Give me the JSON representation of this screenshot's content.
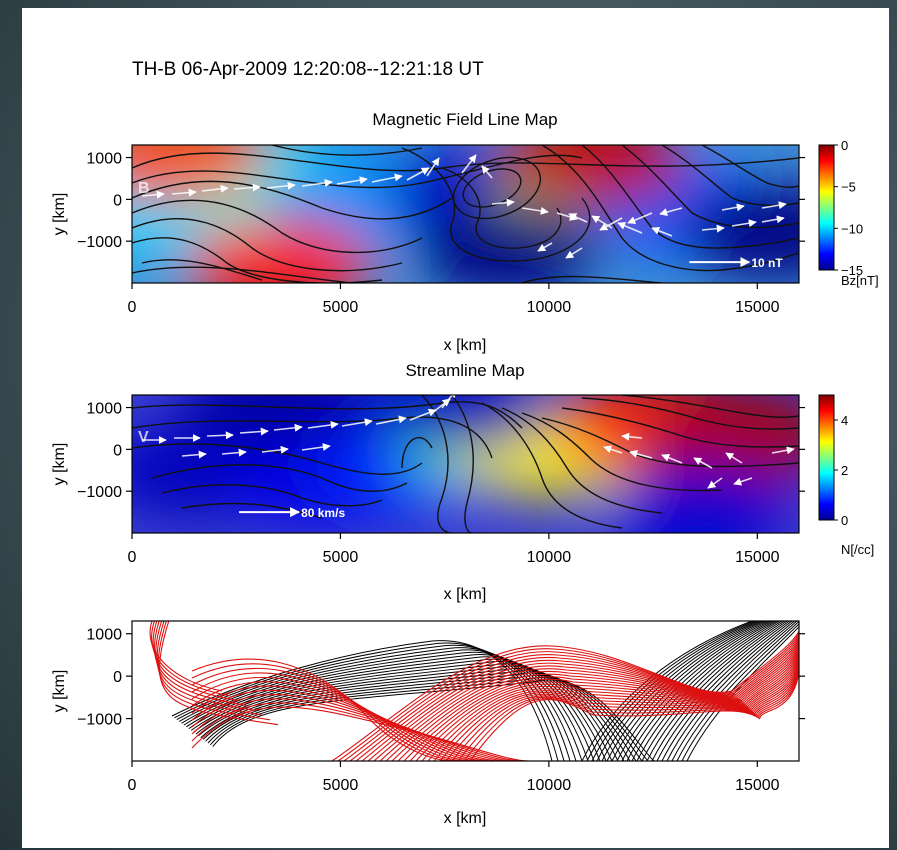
{
  "figure": {
    "supertitle": "TH-B  06-Apr-2009 12:20:08--12:21:18 UT"
  },
  "chart_data": [
    {
      "type": "heatmap",
      "title": "Magnetic Field Line Map",
      "panel_letter": "B",
      "xlabel": "x [km]",
      "ylabel": "y [km]",
      "xlim": [
        0,
        16000
      ],
      "ylim": [
        -2000,
        1300
      ],
      "xticks": [
        0,
        5000,
        10000,
        15000
      ],
      "yticks": [
        1000,
        0,
        -1000
      ],
      "yticklabels": [
        "1000",
        "0",
        "−1000"
      ],
      "colorbar": {
        "label": "Bz[nT]",
        "range": [
          -15,
          0
        ],
        "ticks": [
          0,
          -5,
          -10,
          -15
        ],
        "ticklabels": [
          "0",
          "−5",
          "−10",
          "−15"
        ],
        "colormap": "jet"
      },
      "vector_scale": {
        "label": "10 nT",
        "x": 15000,
        "y": -1500
      },
      "field": [
        {
          "x": 500,
          "y": -300,
          "value": -10
        },
        {
          "x": 3000,
          "y": 400,
          "value": -9
        },
        {
          "x": 5500,
          "y": 0,
          "value": -11
        },
        {
          "x": 8300,
          "y": 200,
          "value": -14
        },
        {
          "x": 11000,
          "y": 0,
          "value": -7
        },
        {
          "x": 13000,
          "y": -200,
          "value": -12
        },
        {
          "x": 15500,
          "y": -800,
          "value": -15
        },
        {
          "x": 9000,
          "y": -1200,
          "value": -15
        },
        {
          "x": 1000,
          "y": 1100,
          "value": -3
        },
        {
          "x": 3500,
          "y": -1600,
          "value": -2
        },
        {
          "x": 11000,
          "y": 1000,
          "value": -1
        }
      ]
    },
    {
      "type": "heatmap",
      "title": "Streamline Map",
      "panel_letter": "V",
      "xlabel": "x [km]",
      "ylabel": "y [km]",
      "xlim": [
        0,
        16000
      ],
      "ylim": [
        -2000,
        1300
      ],
      "xticks": [
        0,
        5000,
        10000,
        15000
      ],
      "yticks": [
        1000,
        0,
        -1000
      ],
      "yticklabels": [
        "1000",
        "0",
        "−1000"
      ],
      "colorbar": {
        "label": "N[/cc]",
        "range": [
          0,
          5
        ],
        "ticks": [
          4,
          2,
          0
        ],
        "ticklabels": [
          "4",
          "2",
          "0"
        ],
        "colormap": "jet"
      },
      "vector_scale": {
        "label": "80 km/s",
        "x": 4200,
        "y": -1500
      },
      "field": [
        {
          "x": 1500,
          "y": -500,
          "value": 0.3
        },
        {
          "x": 4500,
          "y": -700,
          "value": 0.5
        },
        {
          "x": 6500,
          "y": -300,
          "value": 0.8
        },
        {
          "x": 8500,
          "y": 300,
          "value": 2.2
        },
        {
          "x": 10000,
          "y": 0,
          "value": 3.2
        },
        {
          "x": 12500,
          "y": 600,
          "value": 4.2
        },
        {
          "x": 14500,
          "y": 300,
          "value": 4.8
        },
        {
          "x": 13500,
          "y": -1500,
          "value": 0.4
        },
        {
          "x": 3500,
          "y": 1100,
          "value": 0.2
        },
        {
          "x": 7800,
          "y": 1100,
          "value": 0.3
        }
      ]
    },
    {
      "type": "line",
      "title": "",
      "xlabel": "x [km]",
      "ylabel": "y [km]",
      "xlim": [
        0,
        16000
      ],
      "ylim": [
        -2000,
        1300
      ],
      "xticks": [
        0,
        5000,
        10000,
        15000
      ],
      "yticks": [
        1000,
        0,
        -1000
      ],
      "yticklabels": [
        "1000",
        "0",
        "−1000"
      ],
      "colors": {
        "field_lines": "#000000",
        "streamlines": "#dd1111"
      }
    }
  ]
}
